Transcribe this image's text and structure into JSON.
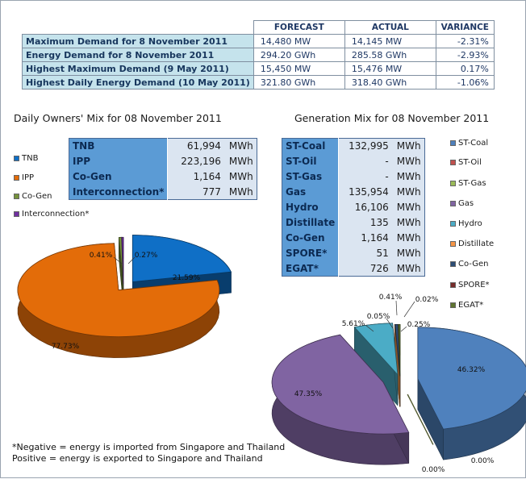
{
  "summary": {
    "headers": [
      "FORECAST",
      "ACTUAL",
      "VARIANCE"
    ],
    "rows": [
      {
        "label": "Maximum Demand for 8 November 2011",
        "forecast": "14,480 MW",
        "actual": "14,145 MW",
        "variance": "-2.31%"
      },
      {
        "label": "Energy Demand for 8 November 2011",
        "forecast": "294.20 GWh",
        "actual": "285.58 GWh",
        "variance": "-2.93%"
      },
      {
        "label": "Highest Maximum Demand (9 May 2011)",
        "forecast": "15,450 MW",
        "actual": "15,476 MW",
        "variance": "0.17%"
      },
      {
        "label": "Highest Daily Energy Demand (10 May 2011)",
        "forecast": "321.80 GWh",
        "actual": "318.40 GWh",
        "variance": "-1.06%"
      }
    ]
  },
  "owners": {
    "title": "Daily Owners' Mix for 08 November 2011",
    "table": [
      {
        "name": "TNB",
        "value": "61,994",
        "unit": "MWh"
      },
      {
        "name": "IPP",
        "value": "223,196",
        "unit": "MWh"
      },
      {
        "name": "Co-Gen",
        "value": "1,164",
        "unit": "MWh"
      },
      {
        "name": "Interconnection*",
        "value": "777",
        "unit": "MWh"
      }
    ],
    "legend": [
      "TNB",
      "IPP",
      "Co-Gen",
      "Interconnection*"
    ]
  },
  "generation": {
    "title": "Generation Mix for 08 November 2011",
    "table": [
      {
        "name": "ST-Coal",
        "value": "132,995",
        "unit": "MWh"
      },
      {
        "name": "ST-Oil",
        "value": "-",
        "unit": "MWh"
      },
      {
        "name": "ST-Gas",
        "value": "-",
        "unit": "MWh"
      },
      {
        "name": "Gas",
        "value": "135,954",
        "unit": "MWh"
      },
      {
        "name": "Hydro",
        "value": "16,106",
        "unit": "MWh"
      },
      {
        "name": "Distillate",
        "value": "135",
        "unit": "MWh"
      },
      {
        "name": "Co-Gen",
        "value": "1,164",
        "unit": "MWh"
      },
      {
        "name": "SPORE*",
        "value": "51",
        "unit": "MWh"
      },
      {
        "name": "EGAT*",
        "value": "726",
        "unit": "MWh"
      }
    ],
    "legend": [
      "ST-Coal",
      "ST-Oil",
      "ST-Gas",
      "Gas",
      "Hydro",
      "Distillate",
      "Co-Gen",
      "SPORE*",
      "EGAT*"
    ]
  },
  "footnote": {
    "line1": "*Negative = energy is imported from Singapore and Thailand",
    "line2": " Positive = energy is exported to Singapore and Thailand"
  },
  "colors": {
    "TNB": "#0f6fc6",
    "IPP": "#e36c09",
    "Co-Gen": "#76923c",
    "Interconnection*": "#7030a0",
    "ST-Coal": "#4f81bd",
    "ST-Oil": "#c0504d",
    "ST-Gas": "#9bbb59",
    "Gas": "#8064a2",
    "Hydro": "#4bacc6",
    "Distillate": "#f79646",
    "Co-Gen2": "#2c4d75",
    "SPORE*": "#772c2a",
    "EGAT*": "#5f7530"
  },
  "chart_data": [
    {
      "type": "pie",
      "title": "Daily Owners' Mix for 08 November 2011",
      "categories": [
        "TNB",
        "IPP",
        "Co-Gen",
        "Interconnection*"
      ],
      "values": [
        21.59,
        77.73,
        0.41,
        0.27
      ],
      "labels": [
        "21.59%",
        "77.73%",
        "0.41%",
        "0.27%"
      ],
      "legend_position": "left"
    },
    {
      "type": "pie",
      "title": "Generation Mix for 08 November 2011",
      "categories": [
        "ST-Coal",
        "ST-Oil",
        "ST-Gas",
        "Gas",
        "Hydro",
        "Distillate",
        "Co-Gen",
        "SPORE*",
        "EGAT*"
      ],
      "values": [
        46.32,
        0.0,
        0.0,
        47.35,
        5.61,
        0.05,
        0.41,
        0.02,
        0.25
      ],
      "labels": [
        "46.32%",
        "0.00%",
        "0.00%",
        "47.35%",
        "5.61%",
        "0.05%",
        "0.41%",
        "0.02%",
        "0.25%"
      ],
      "legend_position": "right"
    }
  ]
}
